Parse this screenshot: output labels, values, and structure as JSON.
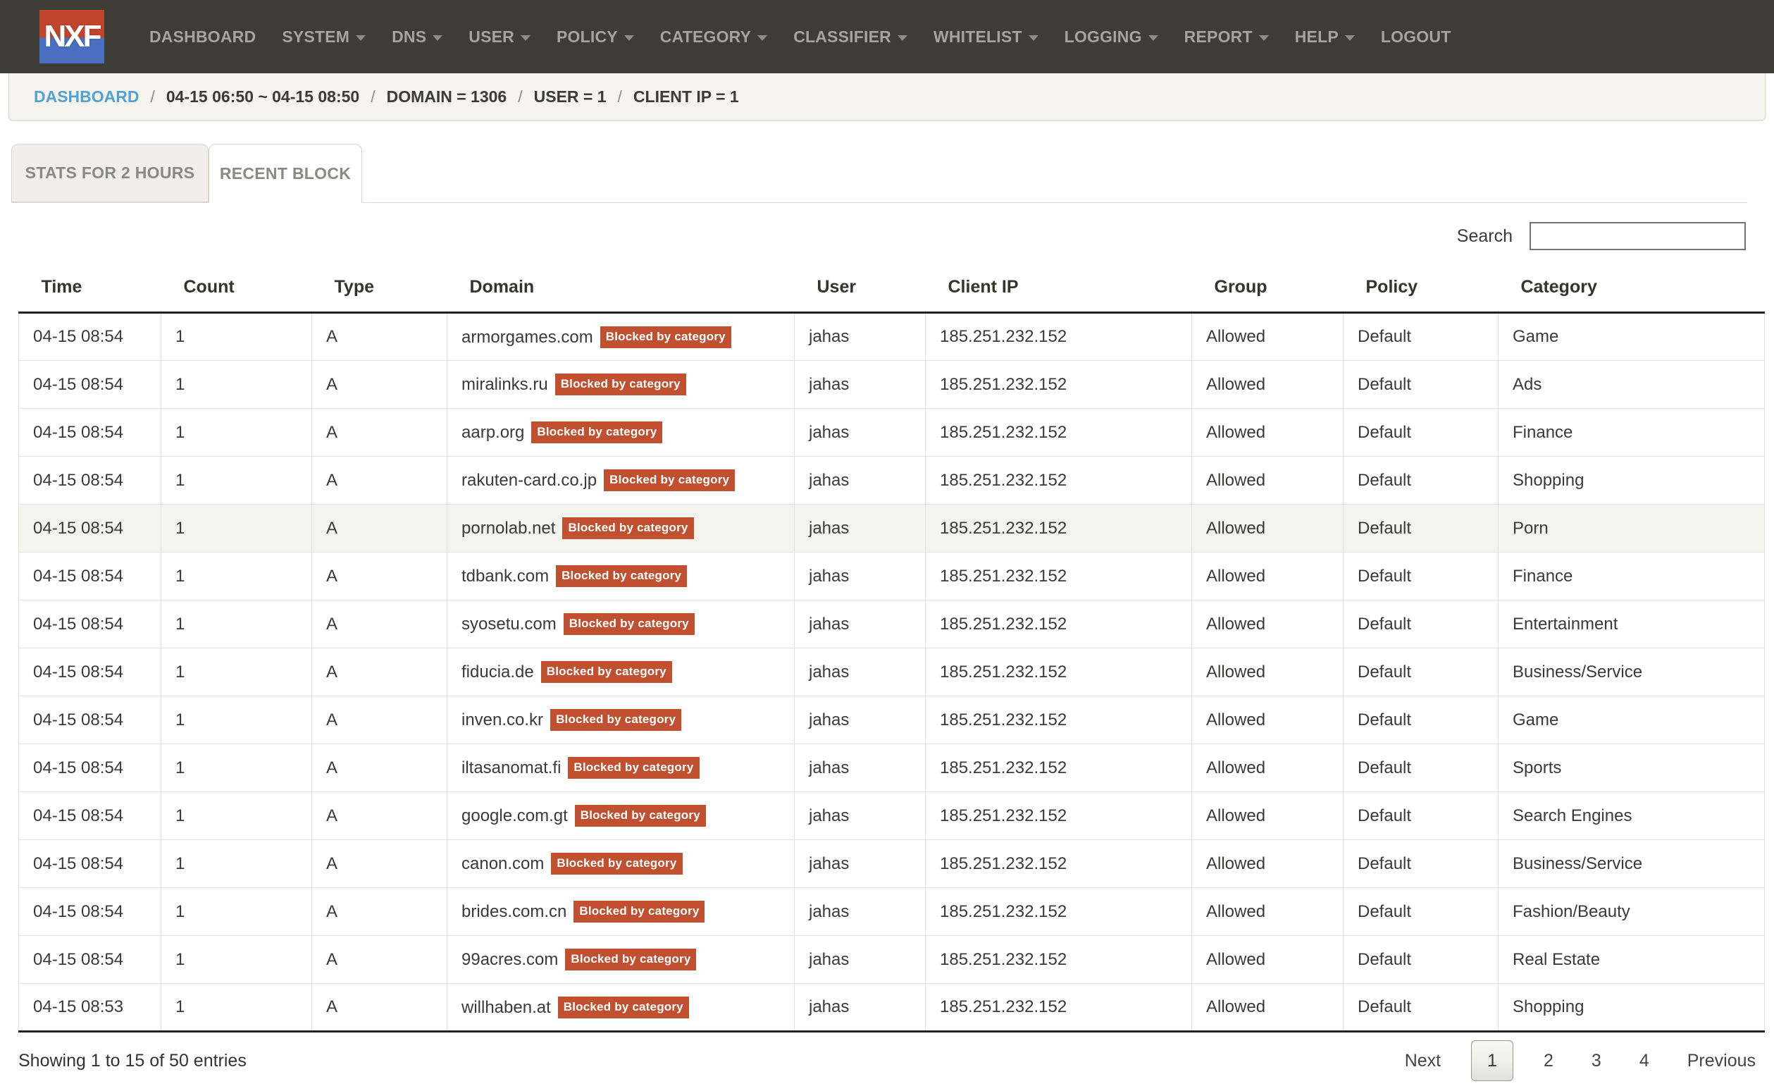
{
  "navbar": {
    "logo_text": "NXF",
    "items": [
      {
        "label": "DASHBOARD",
        "dropdown": false
      },
      {
        "label": "SYSTEM",
        "dropdown": true
      },
      {
        "label": "DNS",
        "dropdown": true
      },
      {
        "label": "USER",
        "dropdown": true
      },
      {
        "label": "POLICY",
        "dropdown": true
      },
      {
        "label": "CATEGORY",
        "dropdown": true
      },
      {
        "label": "CLASSIFIER",
        "dropdown": true
      },
      {
        "label": "WHITELIST",
        "dropdown": true
      },
      {
        "label": "LOGGING",
        "dropdown": true
      },
      {
        "label": "REPORT",
        "dropdown": true
      },
      {
        "label": "HELP",
        "dropdown": true
      },
      {
        "label": "LOGOUT",
        "dropdown": false
      }
    ]
  },
  "breadcrumb": {
    "link": "DASHBOARD",
    "separator": "/",
    "segments": [
      "04-15 06:50 ~ 04-15 08:50",
      "DOMAIN = 1306",
      "USER = 1",
      "CLIENT IP = 1"
    ]
  },
  "tabs": [
    {
      "label": "STATS FOR 2 HOURS",
      "active": false
    },
    {
      "label": "RECENT BLOCK",
      "active": true
    }
  ],
  "search": {
    "label": "Search",
    "value": ""
  },
  "table": {
    "columns": [
      "Time",
      "Count",
      "Type",
      "Domain",
      "User",
      "Client IP",
      "Group",
      "Policy",
      "Category"
    ],
    "badge_label": "Blocked by category",
    "rows": [
      {
        "time": "04-15 08:54",
        "count": "1",
        "type": "A",
        "domain": "armorgames.com",
        "user": "jahas",
        "client_ip": "185.251.232.152",
        "group": "Allowed",
        "policy": "Default",
        "category": "Game",
        "highlighted": false
      },
      {
        "time": "04-15 08:54",
        "count": "1",
        "type": "A",
        "domain": "miralinks.ru",
        "user": "jahas",
        "client_ip": "185.251.232.152",
        "group": "Allowed",
        "policy": "Default",
        "category": "Ads",
        "highlighted": false
      },
      {
        "time": "04-15 08:54",
        "count": "1",
        "type": "A",
        "domain": "aarp.org",
        "user": "jahas",
        "client_ip": "185.251.232.152",
        "group": "Allowed",
        "policy": "Default",
        "category": "Finance",
        "highlighted": false
      },
      {
        "time": "04-15 08:54",
        "count": "1",
        "type": "A",
        "domain": "rakuten-card.co.jp",
        "user": "jahas",
        "client_ip": "185.251.232.152",
        "group": "Allowed",
        "policy": "Default",
        "category": "Shopping",
        "highlighted": false
      },
      {
        "time": "04-15 08:54",
        "count": "1",
        "type": "A",
        "domain": "pornolab.net",
        "user": "jahas",
        "client_ip": "185.251.232.152",
        "group": "Allowed",
        "policy": "Default",
        "category": "Porn",
        "highlighted": true
      },
      {
        "time": "04-15 08:54",
        "count": "1",
        "type": "A",
        "domain": "tdbank.com",
        "user": "jahas",
        "client_ip": "185.251.232.152",
        "group": "Allowed",
        "policy": "Default",
        "category": "Finance",
        "highlighted": false
      },
      {
        "time": "04-15 08:54",
        "count": "1",
        "type": "A",
        "domain": "syosetu.com",
        "user": "jahas",
        "client_ip": "185.251.232.152",
        "group": "Allowed",
        "policy": "Default",
        "category": "Entertainment",
        "highlighted": false
      },
      {
        "time": "04-15 08:54",
        "count": "1",
        "type": "A",
        "domain": "fiducia.de",
        "user": "jahas",
        "client_ip": "185.251.232.152",
        "group": "Allowed",
        "policy": "Default",
        "category": "Business/Service",
        "highlighted": false
      },
      {
        "time": "04-15 08:54",
        "count": "1",
        "type": "A",
        "domain": "inven.co.kr",
        "user": "jahas",
        "client_ip": "185.251.232.152",
        "group": "Allowed",
        "policy": "Default",
        "category": "Game",
        "highlighted": false
      },
      {
        "time": "04-15 08:54",
        "count": "1",
        "type": "A",
        "domain": "iltasanomat.fi",
        "user": "jahas",
        "client_ip": "185.251.232.152",
        "group": "Allowed",
        "policy": "Default",
        "category": "Sports",
        "highlighted": false
      },
      {
        "time": "04-15 08:54",
        "count": "1",
        "type": "A",
        "domain": "google.com.gt",
        "user": "jahas",
        "client_ip": "185.251.232.152",
        "group": "Allowed",
        "policy": "Default",
        "category": "Search Engines",
        "highlighted": false
      },
      {
        "time": "04-15 08:54",
        "count": "1",
        "type": "A",
        "domain": "canon.com",
        "user": "jahas",
        "client_ip": "185.251.232.152",
        "group": "Allowed",
        "policy": "Default",
        "category": "Business/Service",
        "highlighted": false
      },
      {
        "time": "04-15 08:54",
        "count": "1",
        "type": "A",
        "domain": "brides.com.cn",
        "user": "jahas",
        "client_ip": "185.251.232.152",
        "group": "Allowed",
        "policy": "Default",
        "category": "Fashion/Beauty",
        "highlighted": false
      },
      {
        "time": "04-15 08:54",
        "count": "1",
        "type": "A",
        "domain": "99acres.com",
        "user": "jahas",
        "client_ip": "185.251.232.152",
        "group": "Allowed",
        "policy": "Default",
        "category": "Real Estate",
        "highlighted": false
      },
      {
        "time": "04-15 08:53",
        "count": "1",
        "type": "A",
        "domain": "willhaben.at",
        "user": "jahas",
        "client_ip": "185.251.232.152",
        "group": "Allowed",
        "policy": "Default",
        "category": "Shopping",
        "highlighted": false
      }
    ]
  },
  "footer": {
    "showing": "Showing 1 to 15 of 50 entries",
    "pagination": {
      "next_label": "Next",
      "previous_label": "Previous",
      "pages": [
        "1",
        "2",
        "3",
        "4"
      ],
      "current_page": "1"
    }
  },
  "colors": {
    "navbar_bg": "#3d3c37",
    "badge_red": "#c0502f",
    "link_blue": "#53a2d6",
    "logo_red": "#c0452c",
    "logo_blue": "#4a6fc0"
  }
}
